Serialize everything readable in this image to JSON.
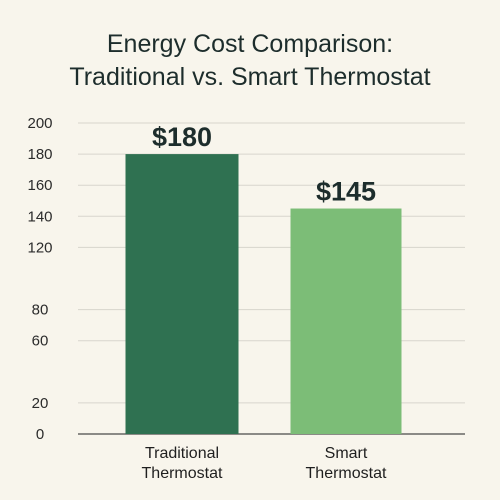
{
  "chart_data": {
    "type": "bar",
    "title_lines": [
      "Energy Cost Comparison:",
      "Traditional vs. Smart Thermostat"
    ],
    "categories": [
      [
        "Traditional",
        "Thermostat"
      ],
      [
        "Smart",
        "Thermostat"
      ]
    ],
    "values": [
      180,
      145
    ],
    "data_labels": [
      "$180",
      "$145"
    ],
    "colors": [
      "#2f7151",
      "#7cbd77"
    ],
    "ylim": [
      0,
      200
    ],
    "yticks": [
      0,
      20,
      60,
      80,
      120,
      140,
      160,
      180,
      200
    ],
    "grid": "horizontal"
  }
}
